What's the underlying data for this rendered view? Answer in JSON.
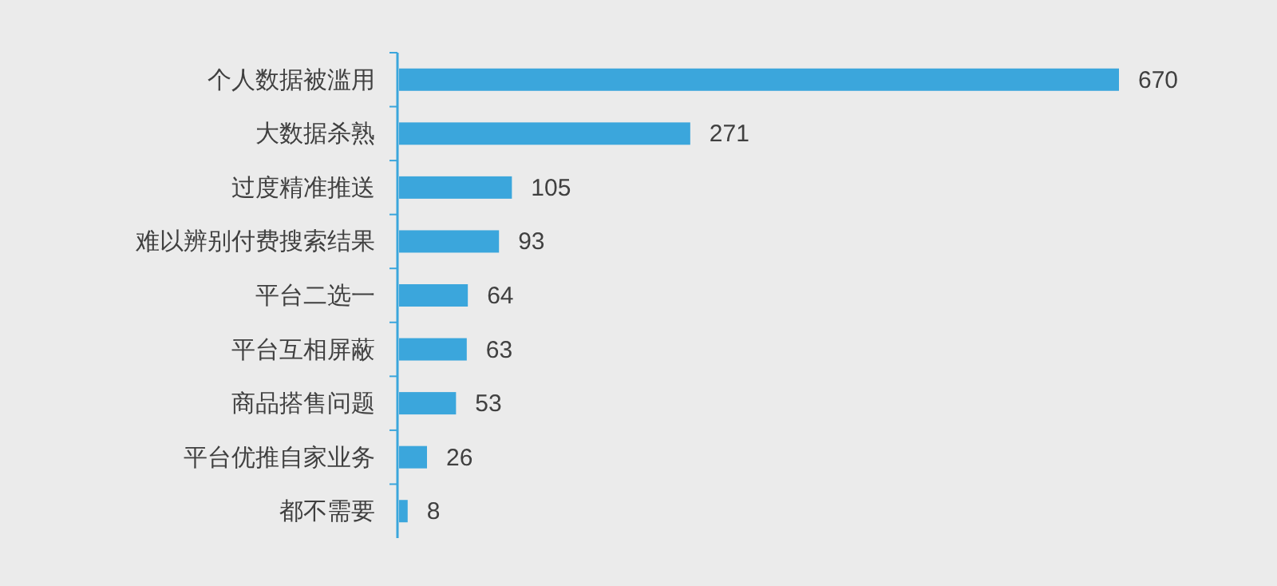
{
  "chart_data": {
    "type": "bar",
    "orientation": "horizontal",
    "data_labels": true,
    "categories": [
      "个人数据被滥用",
      "大数据杀熟",
      "过度精准推送",
      "难以辨别付费搜索结果",
      "平台二选一",
      "平台互相屏蔽",
      "商品搭售问题",
      "平台优推自家业务",
      "都不需要"
    ],
    "values": [
      670,
      271,
      105,
      93,
      64,
      63,
      53,
      26,
      8
    ],
    "color": "#3ba6dc"
  }
}
